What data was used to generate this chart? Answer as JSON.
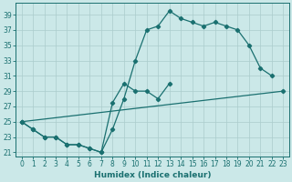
{
  "xlabel": "Humidex (Indice chaleur)",
  "background_color": "#cbe8e8",
  "grid_color": "#aacccc",
  "line_color": "#1a7070",
  "ylim": [
    20.5,
    40.5
  ],
  "xlim": [
    -0.5,
    23.5
  ],
  "yticks": [
    21,
    23,
    25,
    27,
    29,
    31,
    33,
    35,
    37,
    39
  ],
  "xticks": [
    0,
    1,
    2,
    3,
    4,
    5,
    6,
    7,
    8,
    9,
    10,
    11,
    12,
    13,
    14,
    15,
    16,
    17,
    18,
    19,
    20,
    21,
    22,
    23
  ],
  "line1_x": [
    0,
    1,
    2,
    3,
    4,
    5,
    6,
    7,
    8,
    9,
    10,
    11,
    12,
    13,
    14,
    15,
    16,
    17,
    18,
    19,
    20,
    21,
    22
  ],
  "line1_y": [
    25,
    24,
    23,
    23,
    22,
    22,
    21.5,
    21,
    24,
    28,
    33,
    37,
    37.5,
    39.5,
    38.5,
    38,
    37.5,
    38,
    37.5,
    37,
    35,
    32,
    31
  ],
  "line2_x": [
    0,
    1,
    2,
    3,
    4,
    5,
    6,
    7,
    8,
    9,
    10,
    11,
    12,
    13
  ],
  "line2_y": [
    25,
    24,
    23,
    23,
    22,
    22,
    21.5,
    21,
    27.5,
    30,
    29,
    29,
    28,
    30
  ],
  "line3_x": [
    0,
    23
  ],
  "line3_y": [
    25,
    29
  ]
}
